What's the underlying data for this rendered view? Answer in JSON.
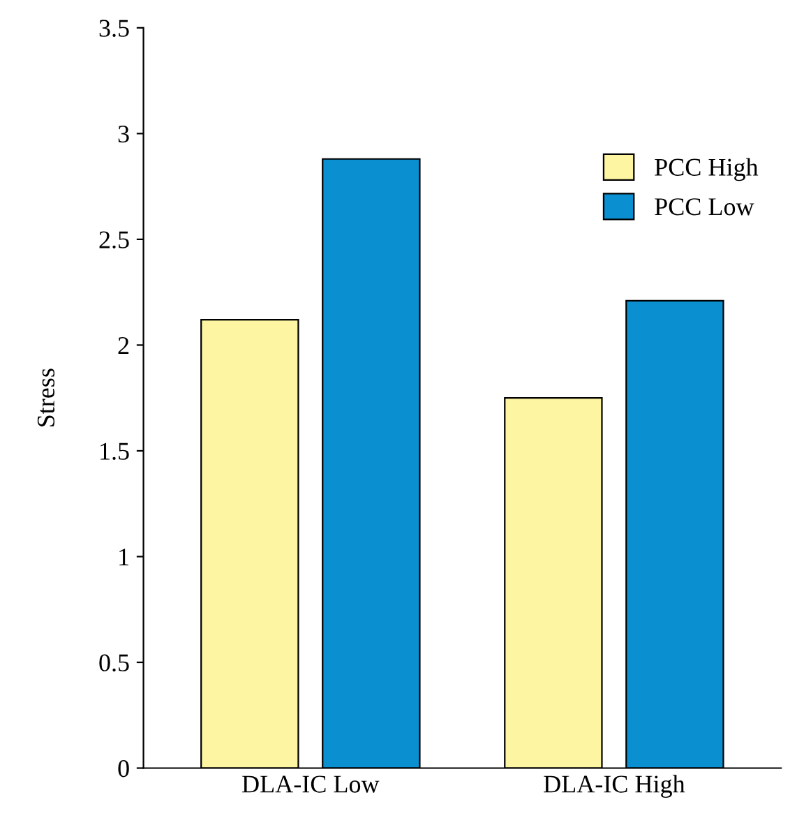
{
  "chart_data": {
    "type": "bar",
    "ylabel": "Stress",
    "categories": [
      "DLA-IC Low",
      "DLA-IC High"
    ],
    "series": [
      {
        "name": "PCC High",
        "color": "#fdf5a2",
        "values": [
          2.12,
          1.75
        ]
      },
      {
        "name": "PCC Low",
        "color": "#0a8fd0",
        "values": [
          2.88,
          2.21
        ]
      }
    ],
    "ylim": [
      0,
      3.5
    ],
    "yticks": [
      0,
      0.5,
      1,
      1.5,
      2,
      2.5,
      3,
      3.5
    ],
    "grid": false,
    "legend": "top right"
  }
}
